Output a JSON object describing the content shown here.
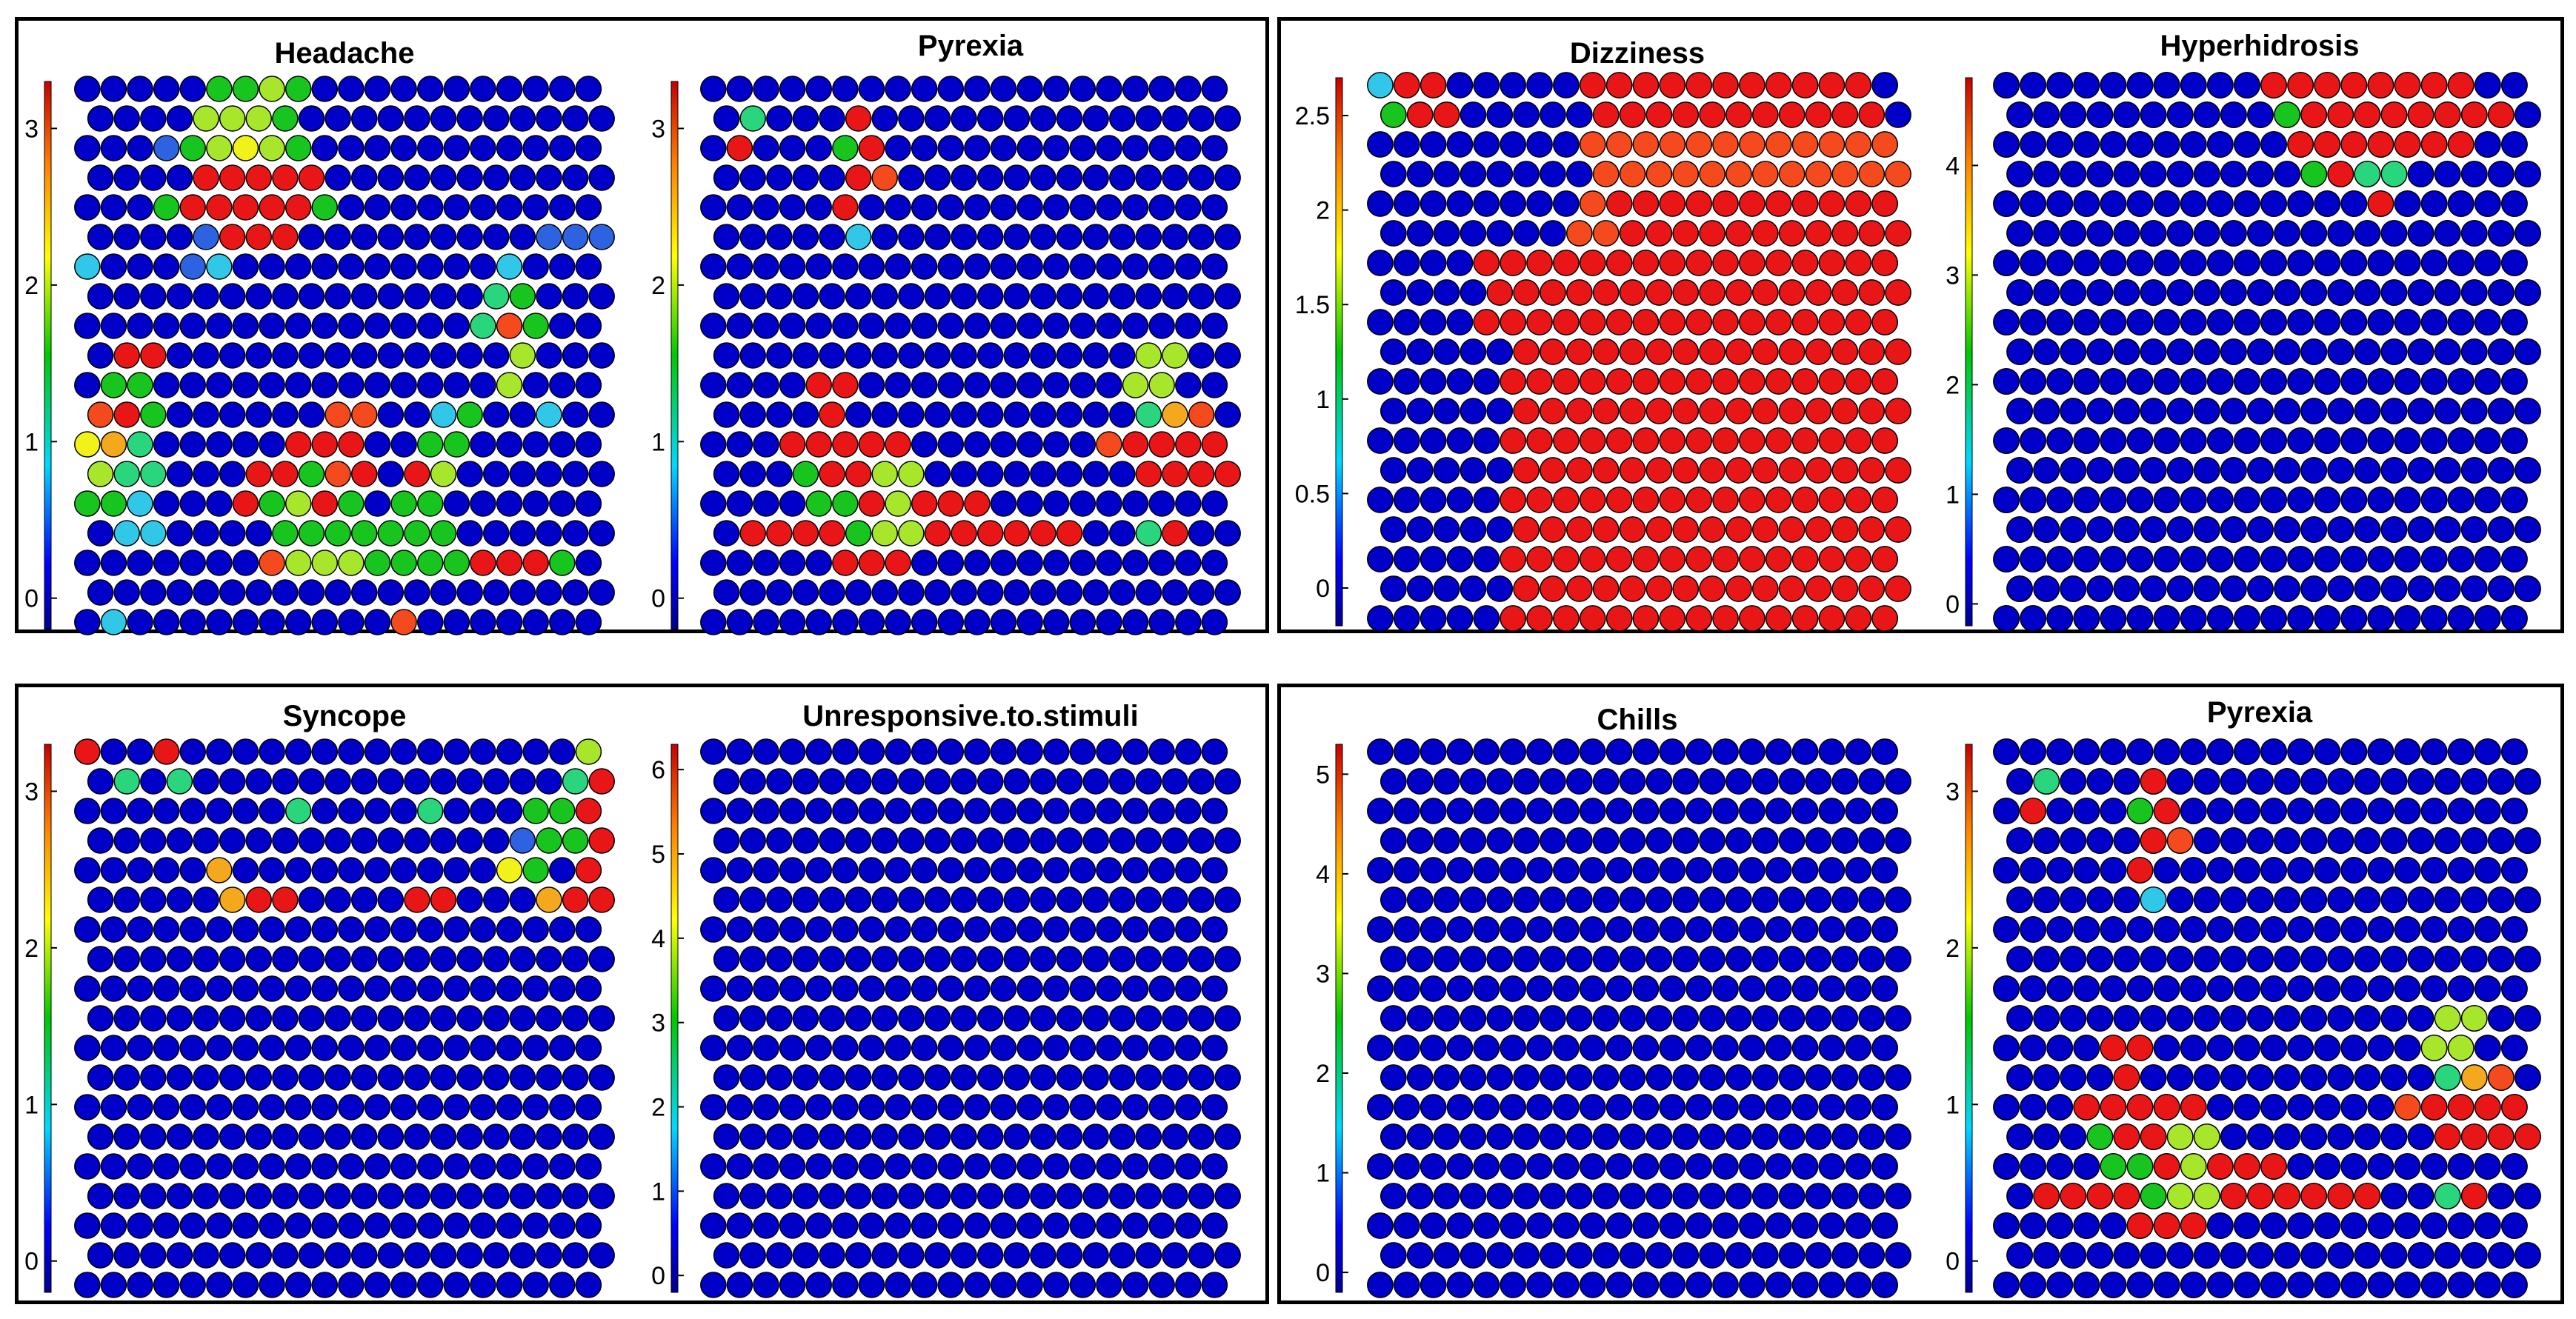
{
  "chart_data": [
    {
      "type": "heatmap",
      "title": "Headache",
      "grid_cols": 20,
      "grid_rows": 19,
      "colorbar_ticks": [
        0,
        1,
        2,
        3
      ],
      "colorbar_range": [
        -0.2,
        3.3
      ],
      "values": [
        "00000445400000000000",
        "00005554000000000000",
        "00014565400000000000",
        "00009999900000000000",
        "00049999940000000000",
        "00001999000000000111",
        "20001200000000002000",
        "00000000000000034000",
        "00000000000000038400",
        "09900000000000005000",
        "04400000000000005000",
        "89400000088002400200",
        "67300000999004400000",
        "53300099489095000000",
        "44200094594044000000",
        "02200004444444000000",
        "00000008555444499940",
        "00000000000000000000",
        "02000000000080000000"
      ]
    },
    {
      "type": "heatmap",
      "title": "Pyrexia",
      "grid_cols": 20,
      "grid_rows": 19,
      "colorbar_ticks": [
        0,
        1,
        2,
        3
      ],
      "colorbar_range": [
        -0.2,
        3.3
      ],
      "values": [
        "00000000000000000000",
        "03000900000000000000",
        "09000490000000000000",
        "00000980000000000000",
        "00000900000000000000",
        "00000200000000000000",
        "00000000000000000000",
        "00000000000000000000",
        "00000000000000000000",
        "00000000000000005500",
        "00009900000000005500",
        "00009000000000003780",
        "00099999000000089999",
        "00049955000000009999",
        "00004495999000000000",
        "09999455999999003900",
        "00000999000000000000",
        "00000000000000000000",
        "00000000000000000000"
      ]
    },
    {
      "type": "heatmap",
      "title": "Dizziness",
      "grid_cols": 20,
      "grid_rows": 19,
      "colorbar_ticks": [
        0,
        0.5,
        1,
        1.5,
        2,
        2.5
      ],
      "colorbar_range": [
        -0.2,
        2.7
      ],
      "values": [
        "29900000999999999990",
        "49900000999999999990",
        "00000000888888888888",
        "00000000888888888888",
        "00000000899999999999",
        "00000008899999999999",
        "00009999999999999999",
        "00009999999999999999",
        "00009999999999999999",
        "00000999999999999999",
        "00000999999999999999",
        "00000999999999999999",
        "00000999999999999999",
        "00000999999999999999",
        "00000999999999999999",
        "00000999999999999999",
        "00000999999999999999",
        "00000999999999999999",
        "00000999999999999999"
      ]
    },
    {
      "type": "heatmap",
      "title": "Hyperhidrosis",
      "grid_cols": 20,
      "grid_rows": 19,
      "colorbar_ticks": [
        0,
        1,
        2,
        3,
        4
      ],
      "colorbar_range": [
        -0.2,
        4.8
      ],
      "values": [
        "00000000009999999900",
        "00000000004999999990",
        "00000000000999999900",
        "00000000000493300000",
        "00000000000000900000",
        "00000000000000000000",
        "00000000000000000000",
        "00000000000000000000",
        "00000000000000000000",
        "00000000000000000000",
        "00000000000000000000",
        "00000000000000000000",
        "00000000000000000000",
        "00000000000000000000",
        "00000000000000000000",
        "00000000000000000000",
        "00000000000000000000",
        "00000000000000000000",
        "00000000000000000000"
      ]
    },
    {
      "type": "heatmap",
      "title": "Syncope",
      "grid_cols": 20,
      "grid_rows": 19,
      "colorbar_ticks": [
        0,
        1,
        2,
        3
      ],
      "colorbar_range": [
        -0.2,
        3.3
      ],
      "values": [
        "90090000000000000005",
        "03030000000000000039",
        "00000000300003000449",
        "00000000000000001449",
        "00000700000000006409",
        "00000799000099000799",
        "00000000000000000000",
        "00000000000000000000",
        "00000000000000000000",
        "00000000000000000000",
        "00000000000000000000",
        "00000000000000000000",
        "00000000000000000000",
        "00000000000000000000",
        "00000000000000000000",
        "00000000000000000000",
        "00000000000000000000",
        "00000000000000000000",
        "00000000000000000000"
      ]
    },
    {
      "type": "heatmap",
      "title": "Unresponsive.to.stimuli",
      "grid_cols": 20,
      "grid_rows": 19,
      "colorbar_ticks": [
        0,
        1,
        2,
        3,
        4,
        5,
        6
      ],
      "colorbar_range": [
        -0.2,
        6.3
      ],
      "values": [
        "00000000000000000000",
        "00000000000000000000",
        "00000000000000000000",
        "00000000000000000000",
        "00000000000000000000",
        "00000000000000000000",
        "00000000000000000000",
        "00000000000000000000",
        "00000000000000000000",
        "00000000000000000000",
        "00000000000000000000",
        "00000000000000000000",
        "00000000000000000000",
        "00000000000000000000",
        "00000000000000000000",
        "00000000000000000000",
        "00000000000000000000",
        "00000000000000000000",
        "00000000000000000000"
      ]
    },
    {
      "type": "heatmap",
      "title": "Chills",
      "grid_cols": 20,
      "grid_rows": 19,
      "colorbar_ticks": [
        0,
        1,
        2,
        3,
        4,
        5
      ],
      "colorbar_range": [
        -0.2,
        5.3
      ],
      "values": [
        "00000000000000000000",
        "00000000000000000000",
        "00000000000000000000",
        "00000000000000000000",
        "00000000000000000000",
        "00000000000000000000",
        "00000000000000000000",
        "00000000000000000000",
        "00000000000000000000",
        "00000000000000000000",
        "00000000000000000000",
        "00000000000000000000",
        "00000000000000000000",
        "00000000000000000000",
        "00000000000000000000",
        "00000000000000000000",
        "00000000000000000000",
        "00000000000000000000",
        "00000000000000000000"
      ]
    },
    {
      "type": "heatmap",
      "title": "Pyrexia",
      "grid_cols": 20,
      "grid_rows": 19,
      "colorbar_ticks": [
        0,
        1,
        2,
        3
      ],
      "colorbar_range": [
        -0.2,
        3.3
      ],
      "values": [
        "00000000000000000000",
        "03000900000000000000",
        "09000490000000000000",
        "00000980000000000000",
        "00000900000000000000",
        "00000200000000000000",
        "00000000000000000000",
        "00000000000000000000",
        "00000000000000000000",
        "00000000000000005500",
        "00009900000000005500",
        "00009000000000003780",
        "00099999000000089999",
        "00049955000000009999",
        "00004495999000000000",
        "09999455999999003900",
        "00000999000000000000",
        "00000000000000000000",
        "00000000000000000000"
      ]
    }
  ],
  "colors": {
    "scale": [
      "#0000c8",
      "#2d63e0",
      "#31c7e8",
      "#29d67d",
      "#17c51e",
      "#a8e62b",
      "#f2f21b",
      "#f3a81e",
      "#f44a1d",
      "#e81616"
    ],
    "frame": "#000000"
  }
}
